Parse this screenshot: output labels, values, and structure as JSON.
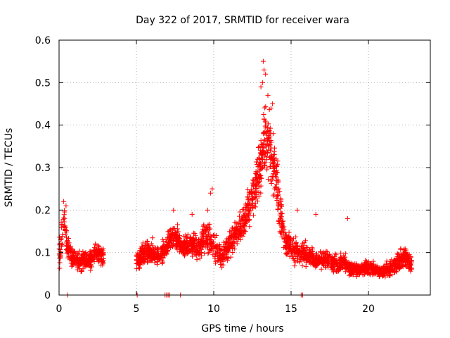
{
  "chart_data": {
    "type": "scatter",
    "title": "Day 322 of 2017, SRMTID for receiver wara",
    "xlabel": "GPS time / hours",
    "ylabel": "SRMTID / TECUs",
    "xlim": [
      0,
      24
    ],
    "ylim": [
      0,
      0.6
    ],
    "x_ticks": [
      0,
      5,
      10,
      15,
      20
    ],
    "x_tick_labels": [
      "0",
      "5",
      "10",
      "15",
      "20"
    ],
    "y_ticks": [
      0,
      0.1,
      0.2,
      0.3,
      0.4,
      0.5,
      0.6
    ],
    "y_tick_labels": [
      "0",
      "0.1",
      "0.2",
      "0.3",
      "0.4",
      "0.5",
      "0.6"
    ],
    "grid": true,
    "marker": "+",
    "color": "#ff0000",
    "series": [
      {
        "name": "SRMTID",
        "profile": [
          [
            0.0,
            0.09,
            0.04
          ],
          [
            0.2,
            0.14,
            0.06
          ],
          [
            0.35,
            0.18,
            0.04
          ],
          [
            0.5,
            0.12,
            0.05
          ],
          [
            0.8,
            0.09,
            0.03
          ],
          [
            1.2,
            0.08,
            0.03
          ],
          [
            1.6,
            0.08,
            0.03
          ],
          [
            2.0,
            0.085,
            0.03
          ],
          [
            2.4,
            0.1,
            0.03
          ],
          [
            2.8,
            0.09,
            0.03
          ],
          [
            5.0,
            0.08,
            0.03
          ],
          [
            5.5,
            0.1,
            0.04
          ],
          [
            6.0,
            0.1,
            0.04
          ],
          [
            6.5,
            0.09,
            0.03
          ],
          [
            7.0,
            0.12,
            0.04
          ],
          [
            7.5,
            0.14,
            0.04
          ],
          [
            8.0,
            0.11,
            0.03
          ],
          [
            8.5,
            0.12,
            0.04
          ],
          [
            9.0,
            0.11,
            0.04
          ],
          [
            9.5,
            0.14,
            0.05
          ],
          [
            10.0,
            0.11,
            0.05
          ],
          [
            10.5,
            0.09,
            0.04
          ],
          [
            11.0,
            0.12,
            0.04
          ],
          [
            11.5,
            0.15,
            0.04
          ],
          [
            12.0,
            0.18,
            0.05
          ],
          [
            12.5,
            0.23,
            0.06
          ],
          [
            13.0,
            0.3,
            0.09
          ],
          [
            13.3,
            0.38,
            0.11
          ],
          [
            13.6,
            0.34,
            0.1
          ],
          [
            14.0,
            0.28,
            0.1
          ],
          [
            14.3,
            0.2,
            0.09
          ],
          [
            14.6,
            0.13,
            0.05
          ],
          [
            15.0,
            0.11,
            0.04
          ],
          [
            15.5,
            0.1,
            0.04
          ],
          [
            16.0,
            0.1,
            0.04
          ],
          [
            16.5,
            0.08,
            0.03
          ],
          [
            17.0,
            0.085,
            0.03
          ],
          [
            17.5,
            0.08,
            0.03
          ],
          [
            18.0,
            0.07,
            0.03
          ],
          [
            18.5,
            0.075,
            0.03
          ],
          [
            19.0,
            0.06,
            0.025
          ],
          [
            19.5,
            0.06,
            0.02
          ],
          [
            20.0,
            0.065,
            0.025
          ],
          [
            20.5,
            0.06,
            0.02
          ],
          [
            21.0,
            0.055,
            0.02
          ],
          [
            21.5,
            0.065,
            0.03
          ],
          [
            22.0,
            0.08,
            0.035
          ],
          [
            22.4,
            0.09,
            0.03
          ],
          [
            22.8,
            0.07,
            0.03
          ]
        ],
        "segments": [
          [
            0.0,
            2.9
          ],
          [
            5.0,
            22.8
          ]
        ],
        "outliers": [
          [
            13.2,
            0.55
          ],
          [
            13.25,
            0.53
          ],
          [
            13.15,
            0.5
          ],
          [
            13.35,
            0.52
          ],
          [
            13.05,
            0.49
          ],
          [
            13.5,
            0.47
          ],
          [
            13.8,
            0.45
          ],
          [
            13.7,
            0.44
          ],
          [
            0.3,
            0.22
          ],
          [
            0.45,
            0.21
          ],
          [
            9.9,
            0.25
          ],
          [
            9.8,
            0.24
          ],
          [
            7.4,
            0.2
          ],
          [
            8.6,
            0.19
          ],
          [
            16.6,
            0.19
          ],
          [
            18.65,
            0.18
          ],
          [
            15.4,
            0.2
          ],
          [
            9.6,
            0.2
          ]
        ],
        "zero_points": [
          0.55,
          5.05,
          6.85,
          6.95,
          7.05,
          7.15,
          7.85,
          15.65,
          15.75
        ],
        "density": 130
      }
    ]
  }
}
